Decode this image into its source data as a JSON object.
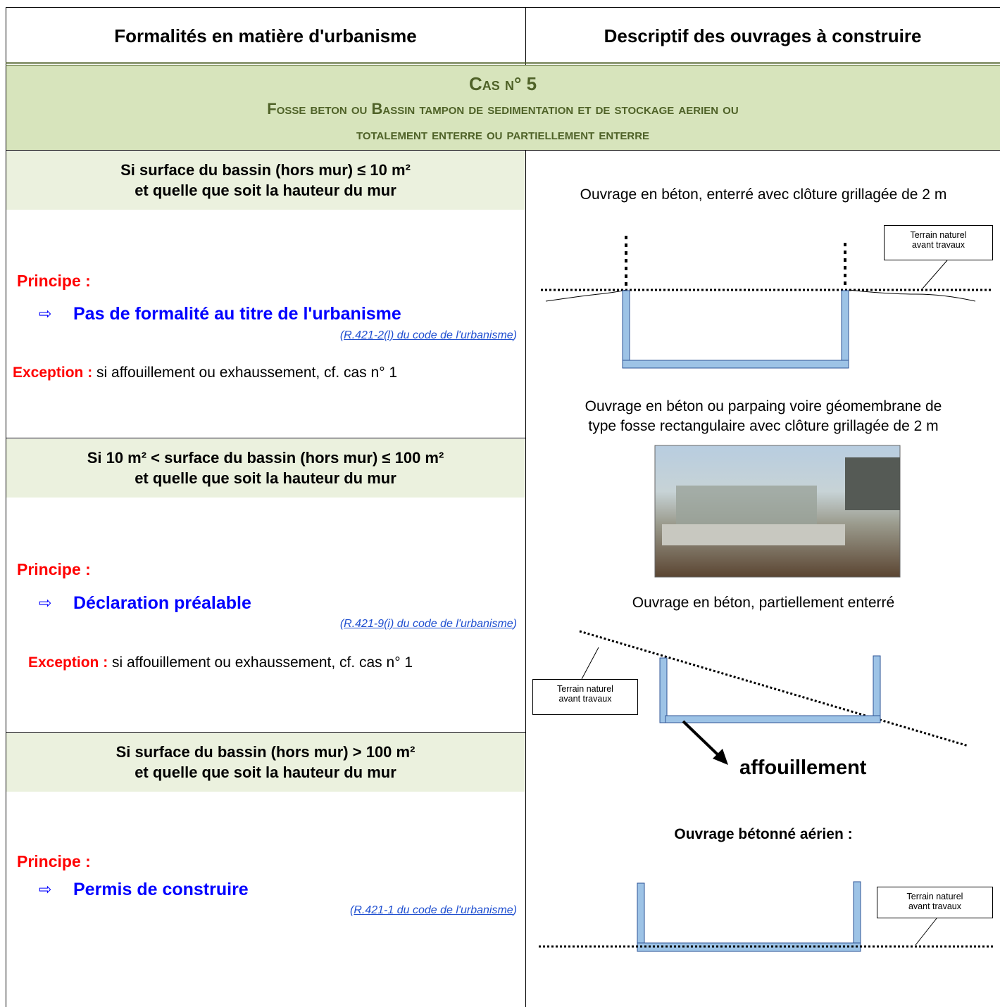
{
  "header": {
    "left": "Formalités en matière d'urbanisme",
    "right": "Descriptif des ouvrages à construire"
  },
  "case": {
    "title": "Cas n° 5",
    "subtitle": [
      "Fosse beton ou Bassin tampon de sedimentation et de stockage aerien ou",
      "totalement enterre ou partiellement enterre"
    ]
  },
  "sections": [
    {
      "condition": [
        "Si surface du bassin (hors mur) ≤ 10 m²",
        "et quelle que soit la hauteur du mur"
      ],
      "principle_label": "Principe :",
      "arrow": "⇨",
      "decision": "Pas de formalité au titre de l'urbanisme",
      "reference": {
        "open": "(",
        "link": "R.421-2(l) du code de l'urbanisme",
        "close": ")"
      },
      "exception": {
        "label": "Exception :",
        "text": "si affouillement ou exhaussement, cf. cas n° 1"
      }
    },
    {
      "condition": [
        "Si 10 m² < surface du bassin (hors mur) ≤ 100 m²",
        "et quelle que soit la hauteur du mur"
      ],
      "principle_label": "Principe :",
      "arrow": "⇨",
      "decision": "Déclaration préalable",
      "reference": {
        "open": "(",
        "link": "R.421-9(i) du code de l'urbanisme",
        "close": ")"
      },
      "exception": {
        "label": "Exception :",
        "text": "si affouillement ou exhaussement, cf. cas n° 1"
      }
    },
    {
      "condition": [
        "Si surface du bassin (hors mur) > 100 m²",
        "et quelle que soit la hauteur du mur"
      ],
      "principle_label": "Principe :",
      "arrow": "⇨",
      "decision": "Permis de construire",
      "reference": {
        "open": "(",
        "link": "R.421-1 du code de l'urbanisme",
        "close": ")"
      }
    }
  ],
  "descriptions": [
    {
      "caption": [
        "Ouvrage en béton, enterré avec clôture grillagée de 2 m"
      ],
      "callout": [
        "Terrain naturel",
        "avant travaux"
      ]
    },
    {
      "caption": [
        "Ouvrage en béton ou parpaing voire géomembrane de",
        "type fosse rectangulaire avec clôture grillagée de 2 m"
      ]
    },
    {
      "caption": [
        "Ouvrage en béton, partiellement enterré"
      ],
      "callout": [
        "Terrain naturel",
        "avant travaux"
      ],
      "annotation": "affouillement"
    },
    {
      "caption": [
        "Ouvrage bétonné aérien :"
      ],
      "callout": [
        "Terrain naturel",
        "avant travaux"
      ]
    }
  ]
}
